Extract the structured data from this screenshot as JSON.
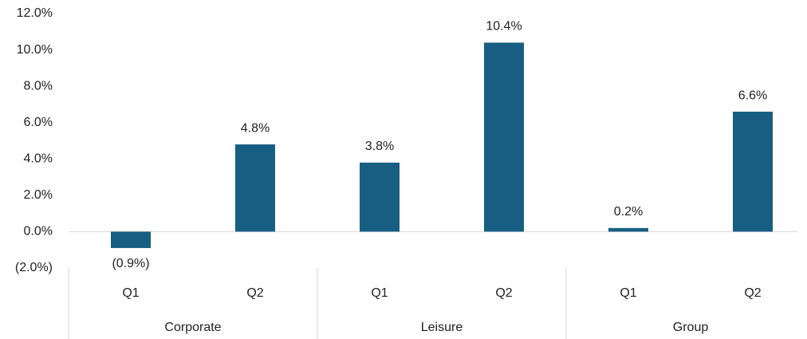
{
  "chart_data": {
    "type": "bar",
    "categories": [
      "Q1",
      "Q2",
      "Q1",
      "Q2",
      "Q1",
      "Q2"
    ],
    "groups": [
      "Corporate",
      "Leisure",
      "Group"
    ],
    "values": [
      -0.9,
      4.8,
      3.8,
      10.4,
      0.2,
      6.6
    ],
    "value_labels": [
      "(0.9%)",
      "4.8%",
      "3.8%",
      "10.4%",
      "0.2%",
      "6.6%"
    ],
    "color": "#175e82",
    "ylim": [
      -2,
      12
    ],
    "yticks": [
      {
        "value": -2,
        "label": "(2.0%)"
      },
      {
        "value": 0,
        "label": "0.0%"
      },
      {
        "value": 2,
        "label": "2.0%"
      },
      {
        "value": 4,
        "label": "4.0%"
      },
      {
        "value": 6,
        "label": "6.0%"
      },
      {
        "value": 8,
        "label": "8.0%"
      },
      {
        "value": 10,
        "label": "10.0%"
      },
      {
        "value": 12,
        "label": "12.0%"
      }
    ],
    "grid": false
  }
}
